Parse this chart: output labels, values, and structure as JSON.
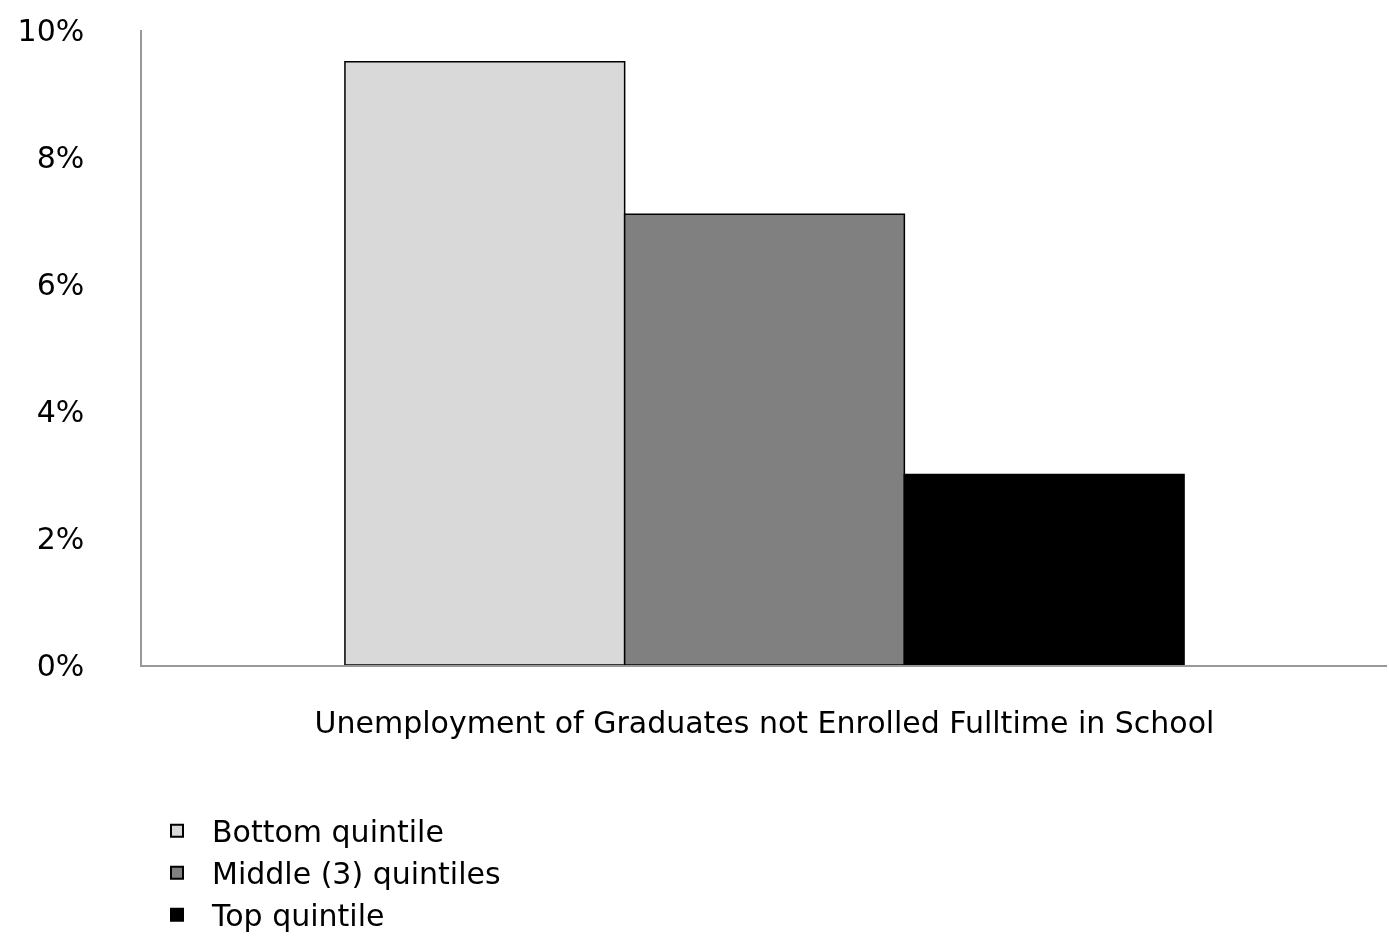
{
  "chart_data": {
    "type": "bar",
    "categories": [
      "Unemployment of Graduates not Enrolled Fulltime in School"
    ],
    "series": [
      {
        "name": "Bottom quintile",
        "color": "#d9d9d9",
        "values": [
          9.5
        ]
      },
      {
        "name": "Middle (3) quintiles",
        "color": "#808080",
        "values": [
          7.1
        ]
      },
      {
        "name": "Top quintile",
        "color": "#000000",
        "values": [
          3.0
        ]
      }
    ],
    "ylim": [
      0,
      10
    ],
    "yticks": [
      {
        "value": 0,
        "label": "0%"
      },
      {
        "value": 2,
        "label": "2%"
      },
      {
        "value": 4,
        "label": "4%"
      },
      {
        "value": 6,
        "label": "6%"
      },
      {
        "value": 8,
        "label": "8%"
      },
      {
        "value": 10,
        "label": "10%"
      }
    ],
    "grid": false,
    "legend": "bottom"
  }
}
